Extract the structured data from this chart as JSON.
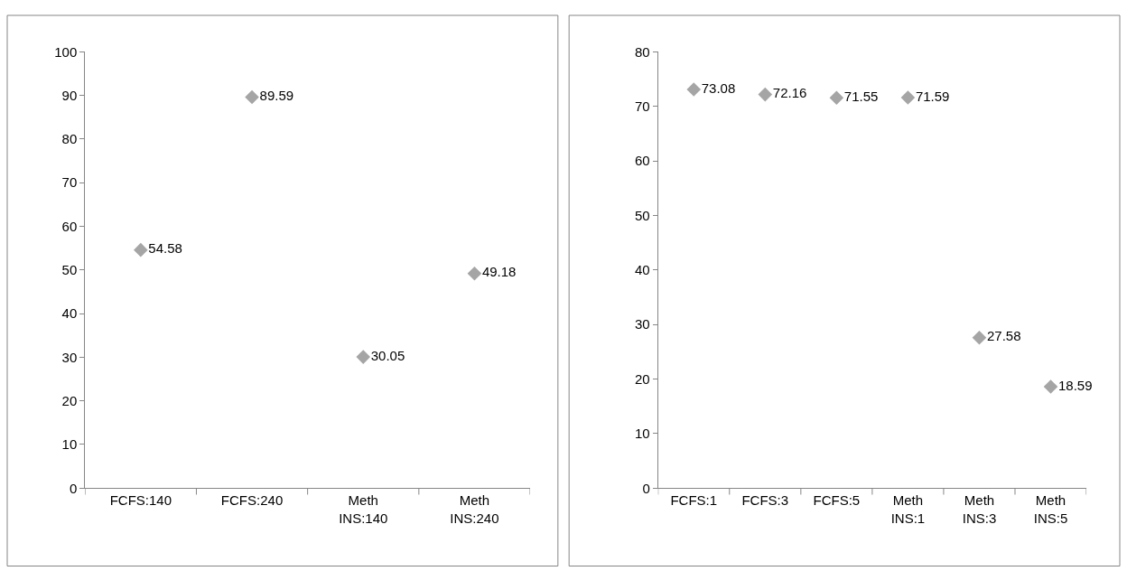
{
  "chart_data": [
    {
      "type": "scatter",
      "categories": [
        "FCFS:140",
        "FCFS:240",
        "Meth INS:140",
        "Meth INS:240"
      ],
      "series": [
        {
          "color": "#a5a5a5",
          "values": [
            54.58,
            89.59,
            30.05,
            49.18
          ]
        }
      ],
      "ylim": [
        0,
        100
      ],
      "yticks": [
        0,
        10,
        20,
        30,
        40,
        50,
        60,
        70,
        80,
        90,
        100
      ],
      "marker": "diamond",
      "data_labels": true
    },
    {
      "type": "scatter",
      "categories": [
        "FCFS:1",
        "FCFS:3",
        "FCFS:5",
        "Meth INS:1",
        "Meth INS:3",
        "Meth INS:5"
      ],
      "series": [
        {
          "color": "#a5a5a5",
          "values": [
            73.08,
            72.16,
            71.55,
            71.59,
            27.58,
            18.59
          ]
        }
      ],
      "ylim": [
        0,
        80
      ],
      "yticks": [
        0,
        10,
        20,
        30,
        40,
        50,
        60,
        70,
        80
      ],
      "marker": "diamond",
      "data_labels": true
    }
  ]
}
